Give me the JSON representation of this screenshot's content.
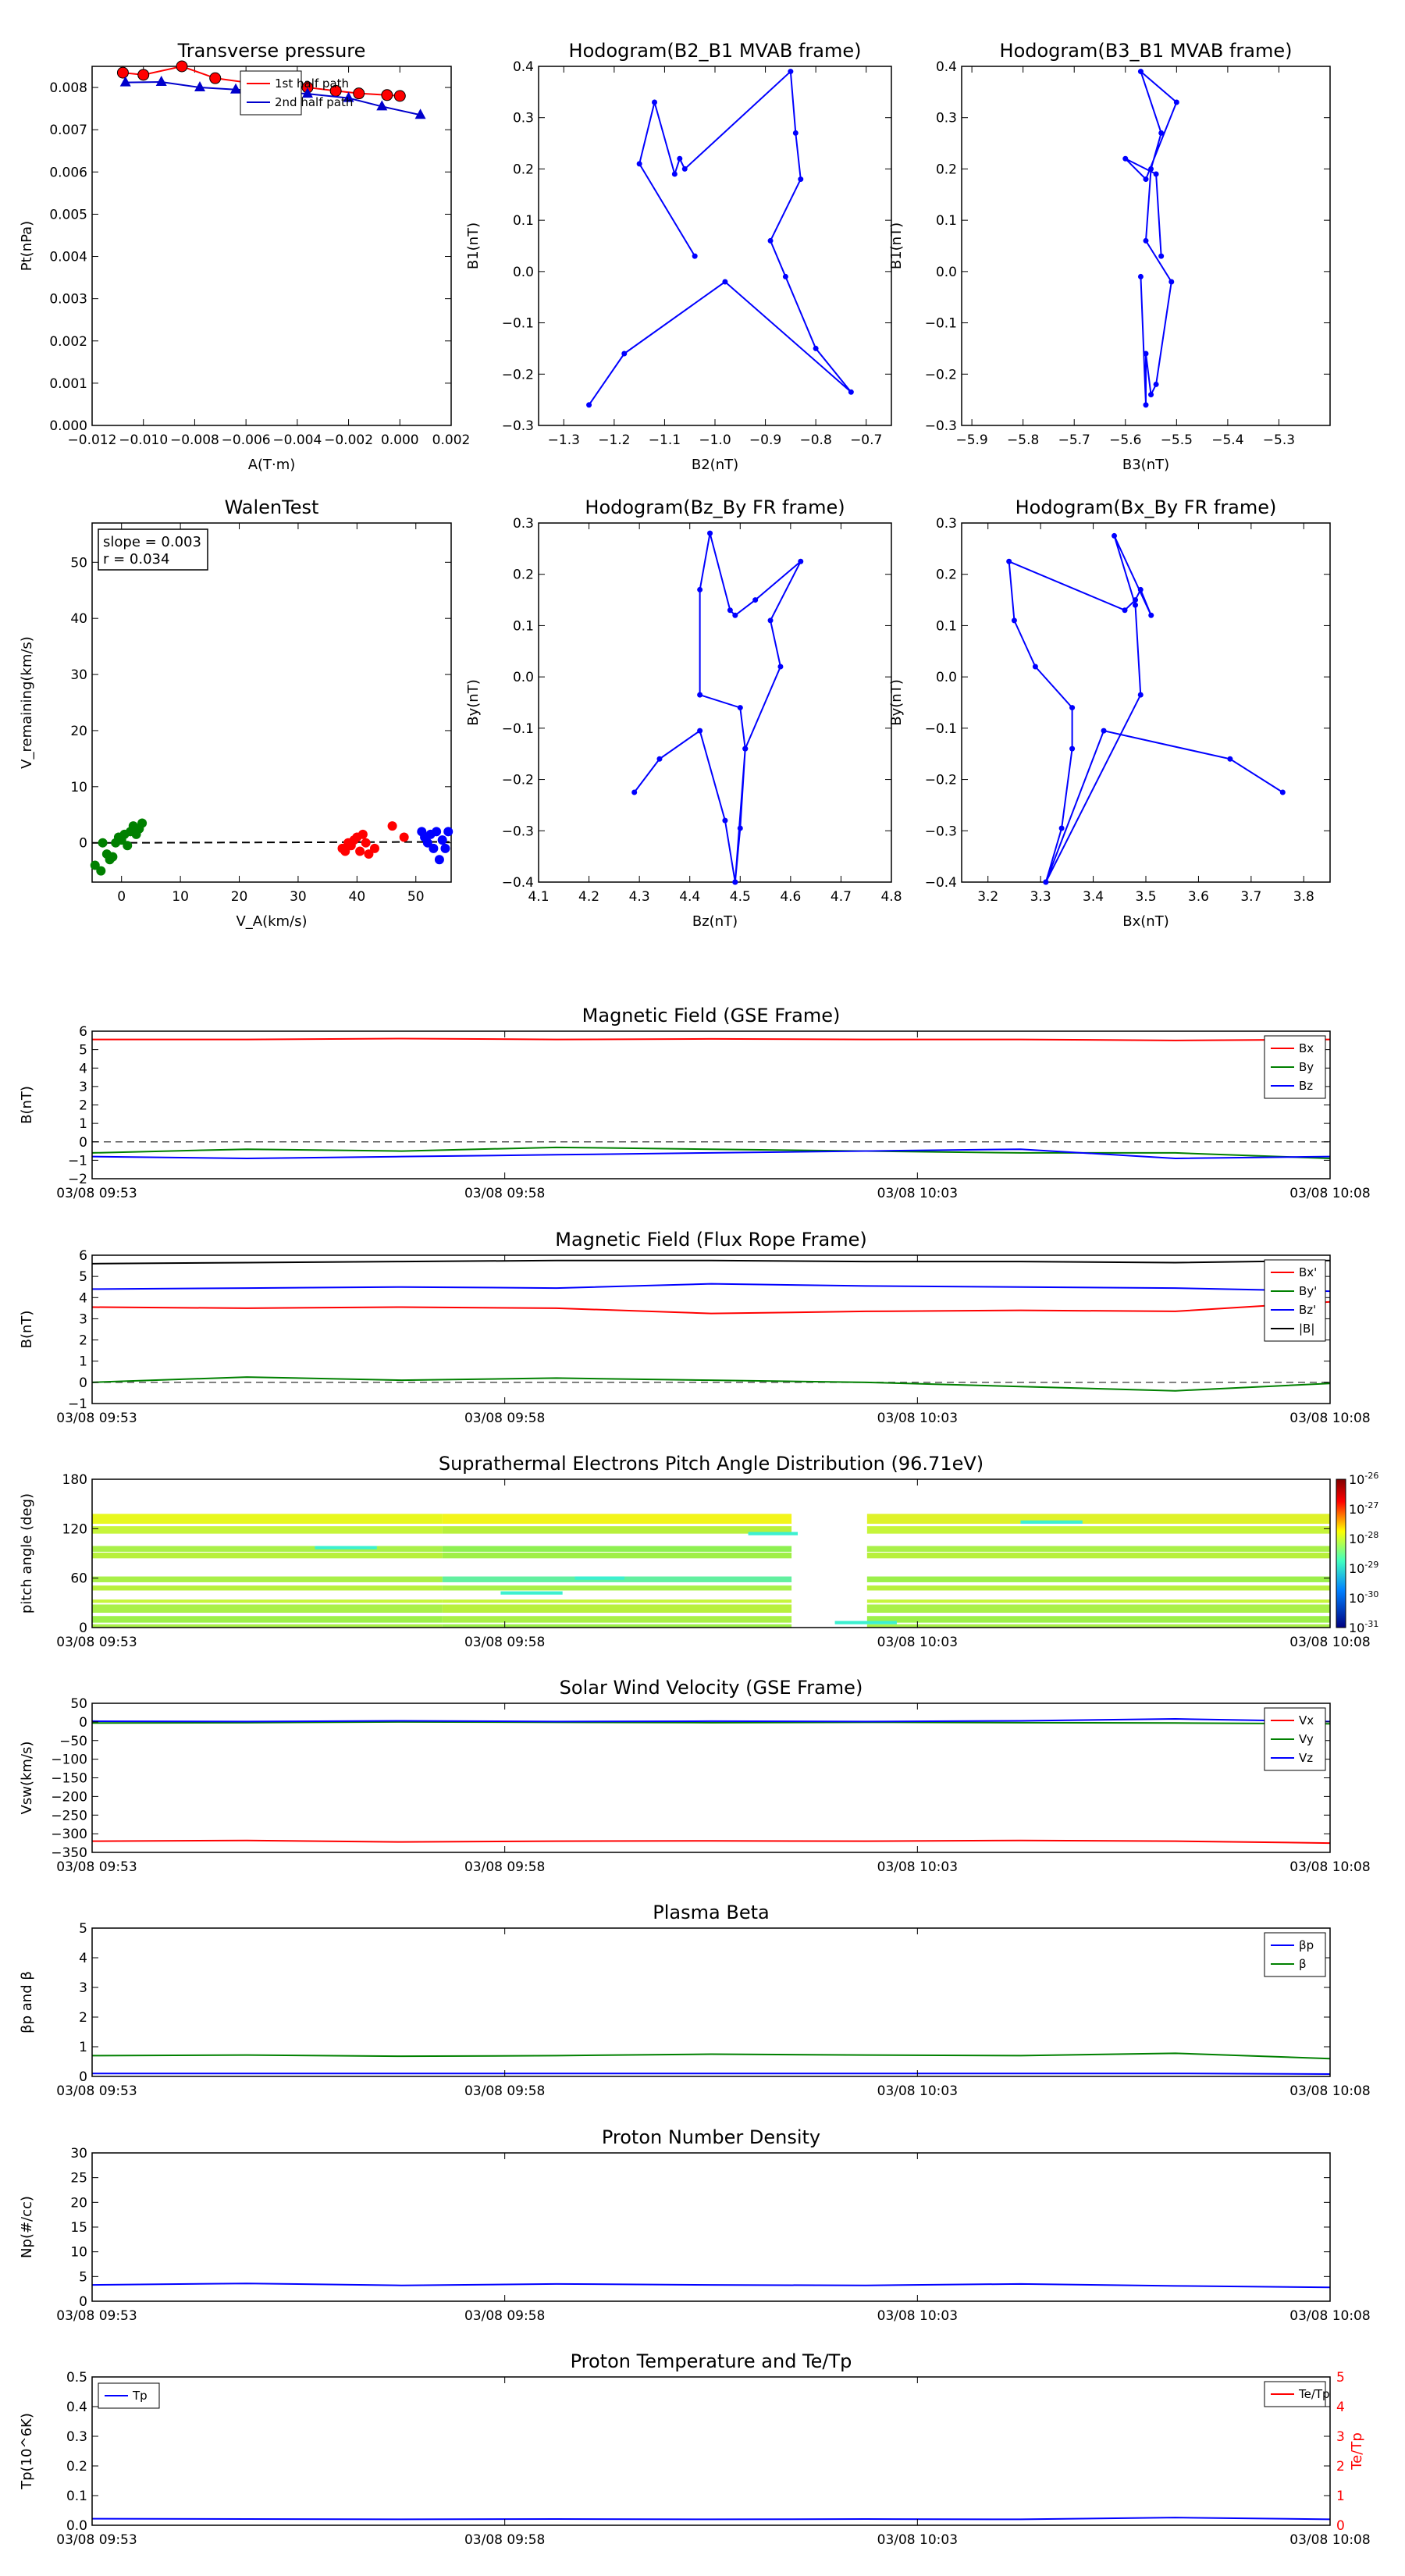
{
  "chart_data": [
    {
      "type": "scatter",
      "title": "Transverse pressure",
      "xlabel": "A(T·m)",
      "ylabel": "Pt(nPa)",
      "xlim": [
        -0.012,
        0.002
      ],
      "ylim": [
        0,
        0.0085
      ],
      "xticks": [
        -0.012,
        -0.01,
        -0.008,
        -0.006,
        -0.004,
        -0.002,
        0.0,
        0.002
      ],
      "xtick_labels": [
        "−0.012",
        "−0.010",
        "−0.008",
        "−0.006",
        "−0.004",
        "−0.002",
        "0.000",
        "0.002"
      ],
      "yticks": [
        0,
        0.001,
        0.002,
        0.003,
        0.004,
        0.005,
        0.006,
        0.007,
        0.008
      ],
      "ytick_labels": [
        "0.000",
        "0.001",
        "0.002",
        "0.003",
        "0.004",
        "0.005",
        "0.006",
        "0.007",
        "0.008"
      ],
      "legend": "top-center",
      "series": [
        {
          "name": "1st half path",
          "color": "#ff0000",
          "marker": "circle",
          "x": [
            -0.0108,
            -0.01,
            -0.0085,
            -0.0072,
            -0.006,
            -0.0048,
            -0.0036,
            -0.0025,
            -0.0016,
            -0.0005,
            0.0
          ],
          "y": [
            0.00835,
            0.0083,
            0.0085,
            0.00822,
            0.00812,
            0.00806,
            0.008,
            0.00792,
            0.00786,
            0.00782,
            0.0078
          ]
        },
        {
          "name": "2nd half path",
          "color": "#0000cc",
          "marker": "triangle",
          "x": [
            -0.0107,
            -0.0093,
            -0.0078,
            -0.0064,
            -0.005,
            -0.0036,
            -0.002,
            -0.0007,
            0.0008
          ],
          "y": [
            0.00812,
            0.00813,
            0.008,
            0.00795,
            0.0079,
            0.00785,
            0.00775,
            0.00755,
            0.00735
          ]
        }
      ]
    },
    {
      "type": "line",
      "title": "Hodogram(B2_B1 MVAB frame)",
      "xlabel": "B2(nT)",
      "ylabel": "B1(nT)",
      "xlim": [
        -1.35,
        -0.65
      ],
      "ylim": [
        -0.3,
        0.4
      ],
      "xticks": [
        -1.3,
        -1.2,
        -1.1,
        -1.0,
        -0.9,
        -0.8,
        -0.7
      ],
      "xtick_labels": [
        "−1.3",
        "−1.2",
        "−1.1",
        "−1.0",
        "−0.9",
        "−0.8",
        "−0.7"
      ],
      "yticks": [
        -0.3,
        -0.2,
        -0.1,
        0.0,
        0.1,
        0.2,
        0.3,
        0.4
      ],
      "ytick_labels": [
        "−0.3",
        "−0.2",
        "−0.1",
        "0.0",
        "0.1",
        "0.2",
        "0.3",
        "0.4"
      ],
      "series": [
        {
          "color": "#0000ff",
          "x": [
            -1.04,
            -1.15,
            -1.12,
            -1.08,
            -1.07,
            -1.06,
            -0.85,
            -0.84,
            -0.83,
            -0.89,
            -0.86,
            -0.8,
            -0.73,
            -0.98,
            -1.18,
            -1.25
          ],
          "y": [
            0.03,
            0.21,
            0.33,
            0.19,
            0.22,
            0.2,
            0.39,
            0.27,
            0.18,
            0.06,
            -0.01,
            -0.15,
            -0.235,
            -0.02,
            -0.16,
            -0.26
          ]
        }
      ]
    },
    {
      "type": "line",
      "title": "Hodogram(B3_B1 MVAB frame)",
      "xlabel": "B3(nT)",
      "ylabel": "B1(nT)",
      "xlim": [
        -5.92,
        -5.2
      ],
      "ylim": [
        -0.3,
        0.4
      ],
      "xticks": [
        -5.9,
        -5.8,
        -5.7,
        -5.6,
        -5.5,
        -5.4,
        -5.3
      ],
      "xtick_labels": [
        "−5.9",
        "−5.8",
        "−5.7",
        "−5.6",
        "−5.5",
        "−5.4",
        "−5.3"
      ],
      "yticks": [
        -0.3,
        -0.2,
        -0.1,
        0.0,
        0.1,
        0.2,
        0.3,
        0.4
      ],
      "ytick_labels": [
        "−0.3",
        "−0.2",
        "−0.1",
        "0.0",
        "0.1",
        "0.2",
        "0.3",
        "0.4"
      ],
      "series": [
        {
          "color": "#0000ff",
          "x": [
            -5.53,
            -5.54,
            -5.6,
            -5.56,
            -5.5,
            -5.57,
            -5.53,
            -5.55,
            -5.56,
            -5.51,
            -5.54,
            -5.55,
            -5.56,
            -5.56,
            -5.57
          ],
          "y": [
            0.03,
            0.19,
            0.22,
            0.18,
            0.33,
            0.39,
            0.27,
            0.2,
            0.06,
            -0.02,
            -0.22,
            -0.24,
            -0.16,
            -0.26,
            -0.01
          ]
        }
      ]
    },
    {
      "type": "scatter",
      "title": "WalenTest",
      "xlabel": "V_A(km/s)",
      "ylabel": "V_remaining(km/s)",
      "annotation": [
        "slope = 0.003",
        "r = 0.034"
      ],
      "xlim": [
        -5,
        56
      ],
      "ylim": [
        -7,
        57
      ],
      "xticks": [
        0,
        10,
        20,
        30,
        40,
        50
      ],
      "xtick_labels": [
        "0",
        "10",
        "20",
        "30",
        "40",
        "50"
      ],
      "yticks": [
        0,
        10,
        20,
        30,
        40,
        50
      ],
      "ytick_labels": [
        "0",
        "10",
        "20",
        "30",
        "40",
        "50"
      ],
      "fit_line": {
        "slope": 0.003,
        "intercept": 0.0,
        "style": "dashed",
        "color": "#000000"
      },
      "series": [
        {
          "color": "#008000",
          "x": [
            -4.5,
            -3.5,
            -3.2,
            -2.5,
            -2.0,
            -1.5,
            -1.0,
            -0.5,
            0.0,
            0.5,
            1.0,
            1.5,
            2.0,
            2.5,
            3.0,
            3.5
          ],
          "y": [
            -4.0,
            -5.0,
            0.0,
            -2.0,
            -3.0,
            -2.5,
            0.0,
            1.0,
            0.5,
            1.5,
            -0.5,
            2.0,
            3.0,
            1.5,
            2.5,
            3.5
          ]
        },
        {
          "color": "#ff0000",
          "x": [
            37.5,
            38.0,
            38.5,
            39.0,
            39.5,
            40.0,
            40.5,
            41.0,
            41.5,
            42.0,
            43.0,
            46.0,
            48.0
          ],
          "y": [
            -1.0,
            -1.5,
            0.0,
            -0.5,
            0.5,
            1.0,
            -1.5,
            1.5,
            0.0,
            -2.0,
            -1.0,
            3.0,
            1.0
          ]
        },
        {
          "color": "#0000ff",
          "x": [
            51.0,
            51.5,
            52.0,
            52.5,
            53.0,
            53.5,
            54.0,
            54.5,
            55.0,
            55.5
          ],
          "y": [
            2.0,
            1.0,
            0.0,
            1.5,
            -1.0,
            2.0,
            -3.0,
            0.5,
            -1.0,
            2.0
          ]
        }
      ]
    },
    {
      "type": "line",
      "title": "Hodogram(Bz_By FR frame)",
      "xlabel": "Bz(nT)",
      "ylabel": "By(nT)",
      "xlim": [
        4.1,
        4.8
      ],
      "ylim": [
        -0.4,
        0.3
      ],
      "xticks": [
        4.1,
        4.2,
        4.3,
        4.4,
        4.5,
        4.6,
        4.7,
        4.8
      ],
      "xtick_labels": [
        "4.1",
        "4.2",
        "4.3",
        "4.4",
        "4.5",
        "4.6",
        "4.7",
        "4.8"
      ],
      "yticks": [
        -0.4,
        -0.3,
        -0.2,
        -0.1,
        0.0,
        0.1,
        0.2,
        0.3
      ],
      "ytick_labels": [
        "−0.4",
        "−0.3",
        "−0.2",
        "−0.1",
        "0.0",
        "0.1",
        "0.2",
        "0.3"
      ],
      "series": [
        {
          "color": "#0000ff",
          "x": [
            4.29,
            4.34,
            4.42,
            4.47,
            4.49,
            4.51,
            4.58,
            4.56,
            4.62,
            4.53,
            4.49,
            4.48,
            4.44,
            4.42,
            4.42,
            4.5,
            4.51,
            4.5,
            4.49
          ],
          "y": [
            -0.225,
            -0.16,
            -0.105,
            -0.28,
            -0.4,
            -0.14,
            0.02,
            0.11,
            0.225,
            0.15,
            0.12,
            0.13,
            0.28,
            0.17,
            -0.035,
            -0.06,
            -0.14,
            -0.295,
            -0.4
          ]
        }
      ]
    },
    {
      "type": "line",
      "title": "Hodogram(Bx_By FR frame)",
      "xlabel": "Bx(nT)",
      "ylabel": "By(nT)",
      "xlim": [
        3.15,
        3.85
      ],
      "ylim": [
        -0.4,
        0.3
      ],
      "xticks": [
        3.2,
        3.3,
        3.4,
        3.5,
        3.6,
        3.7,
        3.8
      ],
      "xtick_labels": [
        "3.2",
        "3.3",
        "3.4",
        "3.5",
        "3.6",
        "3.7",
        "3.8"
      ],
      "yticks": [
        -0.4,
        -0.3,
        -0.2,
        -0.1,
        0.0,
        0.1,
        0.2,
        0.3
      ],
      "ytick_labels": [
        "−0.4",
        "−0.3",
        "−0.2",
        "−0.1",
        "0.0",
        "0.1",
        "0.2",
        "0.3"
      ],
      "series": [
        {
          "color": "#0000ff",
          "x": [
            3.76,
            3.66,
            3.42,
            3.31,
            3.34,
            3.36,
            3.36,
            3.29,
            3.25,
            3.24,
            3.46,
            3.48,
            3.49,
            3.51,
            3.44,
            3.48,
            3.49,
            3.31
          ],
          "y": [
            -0.225,
            -0.16,
            -0.105,
            -0.4,
            -0.295,
            -0.14,
            -0.06,
            0.02,
            0.11,
            0.225,
            0.13,
            0.15,
            0.17,
            0.12,
            0.275,
            0.14,
            -0.035,
            -0.4
          ]
        }
      ]
    },
    {
      "type": "line",
      "title": "Magnetic Field (GSE Frame)",
      "xlabel": "",
      "ylabel": "B(nT)",
      "x_tick_labels": [
        "03/08 09:53",
        "03/08 09:58",
        "03/08 10:03",
        "03/08 10:08"
      ],
      "ylim": [
        -2,
        6
      ],
      "yticks": [
        -2,
        -1,
        0,
        1,
        2,
        3,
        4,
        5,
        6
      ],
      "ytick_labels": [
        "−2",
        "−1",
        "0",
        "1",
        "2",
        "3",
        "4",
        "5",
        "6"
      ],
      "zero_line": true,
      "legend": "top-right",
      "series": [
        {
          "name": "Bx",
          "color": "#ff0000",
          "values": [
            5.55,
            5.55,
            5.6,
            5.55,
            5.58,
            5.55,
            5.55,
            5.5,
            5.55
          ]
        },
        {
          "name": "By",
          "color": "#008000",
          "values": [
            -0.6,
            -0.4,
            -0.5,
            -0.3,
            -0.4,
            -0.5,
            -0.6,
            -0.6,
            -0.9
          ]
        },
        {
          "name": "Bz",
          "color": "#0000ff",
          "values": [
            -0.8,
            -0.9,
            -0.8,
            -0.7,
            -0.6,
            -0.5,
            -0.4,
            -0.9,
            -0.8
          ]
        }
      ]
    },
    {
      "type": "line",
      "title": "Magnetic Field (Flux Rope Frame)",
      "xlabel": "",
      "ylabel": "B(nT)",
      "x_tick_labels": [
        "03/08 09:53",
        "03/08 09:58",
        "03/08 10:03",
        "03/08 10:08"
      ],
      "ylim": [
        -1,
        6
      ],
      "yticks": [
        -1,
        0,
        1,
        2,
        3,
        4,
        5,
        6
      ],
      "ytick_labels": [
        "−1",
        "0",
        "1",
        "2",
        "3",
        "4",
        "5",
        "6"
      ],
      "zero_line": true,
      "legend": "top-right",
      "series": [
        {
          "name": "Bx'",
          "color": "#ff0000",
          "values": [
            3.55,
            3.5,
            3.55,
            3.5,
            3.25,
            3.35,
            3.4,
            3.35,
            3.8
          ]
        },
        {
          "name": "By'",
          "color": "#008000",
          "values": [
            0.0,
            0.25,
            0.1,
            0.2,
            0.1,
            0.0,
            -0.2,
            -0.4,
            -0.05
          ]
        },
        {
          "name": "Bz'",
          "color": "#0000ff",
          "values": [
            4.4,
            4.45,
            4.5,
            4.45,
            4.65,
            4.55,
            4.5,
            4.45,
            4.3
          ]
        },
        {
          "name": "|B|",
          "color": "#000000",
          "values": [
            5.6,
            5.65,
            5.7,
            5.75,
            5.75,
            5.7,
            5.7,
            5.65,
            5.75
          ]
        }
      ]
    },
    {
      "type": "heatmap",
      "title": "Suprathermal Electrons Pitch Angle Distribution (96.71eV)",
      "xlabel": "",
      "ylabel": "pitch angle (deg)",
      "x_tick_labels": [
        "03/08 09:53",
        "03/08 09:58",
        "03/08 10:03",
        "03/08 10:08"
      ],
      "ylim": [
        0,
        180
      ],
      "yticks": [
        0,
        60,
        120,
        180
      ],
      "ytick_labels": [
        "0",
        "60",
        "120",
        "180"
      ],
      "colorbar_labels": [
        "10^-26",
        "10^-27",
        "10^-28",
        "10^-29",
        "10^-30",
        "10^-31"
      ],
      "colorbar_exponents": [
        "-26",
        "-27",
        "-28",
        "-29",
        "-30",
        "-31"
      ]
    },
    {
      "type": "line",
      "title": "Solar Wind Velocity (GSE Frame)",
      "xlabel": "",
      "ylabel": "Vsw(km/s)",
      "x_tick_labels": [
        "03/08 09:53",
        "03/08 09:58",
        "03/08 10:03",
        "03/08 10:08"
      ],
      "ylim": [
        -350,
        50
      ],
      "yticks": [
        -350,
        -300,
        -250,
        -200,
        -150,
        -100,
        -50,
        0,
        50
      ],
      "ytick_labels": [
        "−350",
        "−300",
        "−250",
        "−200",
        "−150",
        "−100",
        "−50",
        "0",
        "50"
      ],
      "legend": "top-right",
      "series": [
        {
          "name": "Vx",
          "color": "#ff0000",
          "values": [
            -320,
            -318,
            -322,
            -320,
            -319,
            -320,
            -318,
            -320,
            -325
          ]
        },
        {
          "name": "Vy",
          "color": "#008000",
          "values": [
            -3,
            -2,
            0,
            -1,
            -2,
            -1,
            -2,
            -3,
            -5
          ]
        },
        {
          "name": "Vz",
          "color": "#0000ff",
          "values": [
            2,
            1,
            3,
            1,
            2,
            1,
            3,
            8,
            1
          ]
        }
      ]
    },
    {
      "type": "line",
      "title": "Plasma Beta",
      "xlabel": "",
      "ylabel": "βp and β",
      "x_tick_labels": [
        "03/08 09:53",
        "03/08 09:58",
        "03/08 10:03",
        "03/08 10:08"
      ],
      "ylim": [
        0,
        5
      ],
      "yticks": [
        0,
        1,
        2,
        3,
        4,
        5
      ],
      "ytick_labels": [
        "0",
        "1",
        "2",
        "3",
        "4",
        "5"
      ],
      "legend": "top-right",
      "series": [
        {
          "name": "βp",
          "color": "#0000ff",
          "values": [
            0.1,
            0.1,
            0.1,
            0.1,
            0.1,
            0.1,
            0.1,
            0.1,
            0.08
          ]
        },
        {
          "name": "β",
          "color": "#008000",
          "values": [
            0.7,
            0.72,
            0.68,
            0.7,
            0.75,
            0.72,
            0.7,
            0.78,
            0.6
          ]
        }
      ]
    },
    {
      "type": "line",
      "title": "Proton Number Density",
      "xlabel": "",
      "ylabel": "Np(#/cc)",
      "x_tick_labels": [
        "03/08 09:53",
        "03/08 09:58",
        "03/08 10:03",
        "03/08 10:08"
      ],
      "ylim": [
        0,
        30
      ],
      "yticks": [
        0,
        5,
        10,
        15,
        20,
        25,
        30
      ],
      "ytick_labels": [
        "0",
        "5",
        "10",
        "15",
        "20",
        "25",
        "30"
      ],
      "series": [
        {
          "color": "#0000ff",
          "values": [
            3.3,
            3.6,
            3.2,
            3.5,
            3.3,
            3.2,
            3.5,
            3.1,
            2.8
          ]
        }
      ]
    },
    {
      "type": "line",
      "title": "Proton Temperature and Te/Tp",
      "xlabel": "",
      "ylabel": "Tp(10^6K)",
      "ylabel_right": "Te/Tp",
      "x_tick_labels": [
        "03/08 09:53",
        "03/08 09:58",
        "03/08 10:03",
        "03/08 10:08"
      ],
      "ylim": [
        0,
        0.5
      ],
      "yticks": [
        0,
        0.1,
        0.2,
        0.3,
        0.4,
        0.5
      ],
      "ytick_labels": [
        "0.0",
        "0.1",
        "0.2",
        "0.3",
        "0.4",
        "0.5"
      ],
      "ylim_right": [
        0,
        5
      ],
      "yticks_right": [
        0,
        1,
        2,
        3,
        4,
        5
      ],
      "ytick_labels_right": [
        "0",
        "1",
        "2",
        "3",
        "4",
        "5"
      ],
      "series": [
        {
          "name": "Tp",
          "color": "#0000ff",
          "values": [
            0.022,
            0.021,
            0.02,
            0.021,
            0.02,
            0.021,
            0.02,
            0.026,
            0.02
          ]
        },
        {
          "name": "Te/Tp",
          "color": "#ff0000",
          "axis": "right",
          "values": []
        }
      ]
    }
  ]
}
